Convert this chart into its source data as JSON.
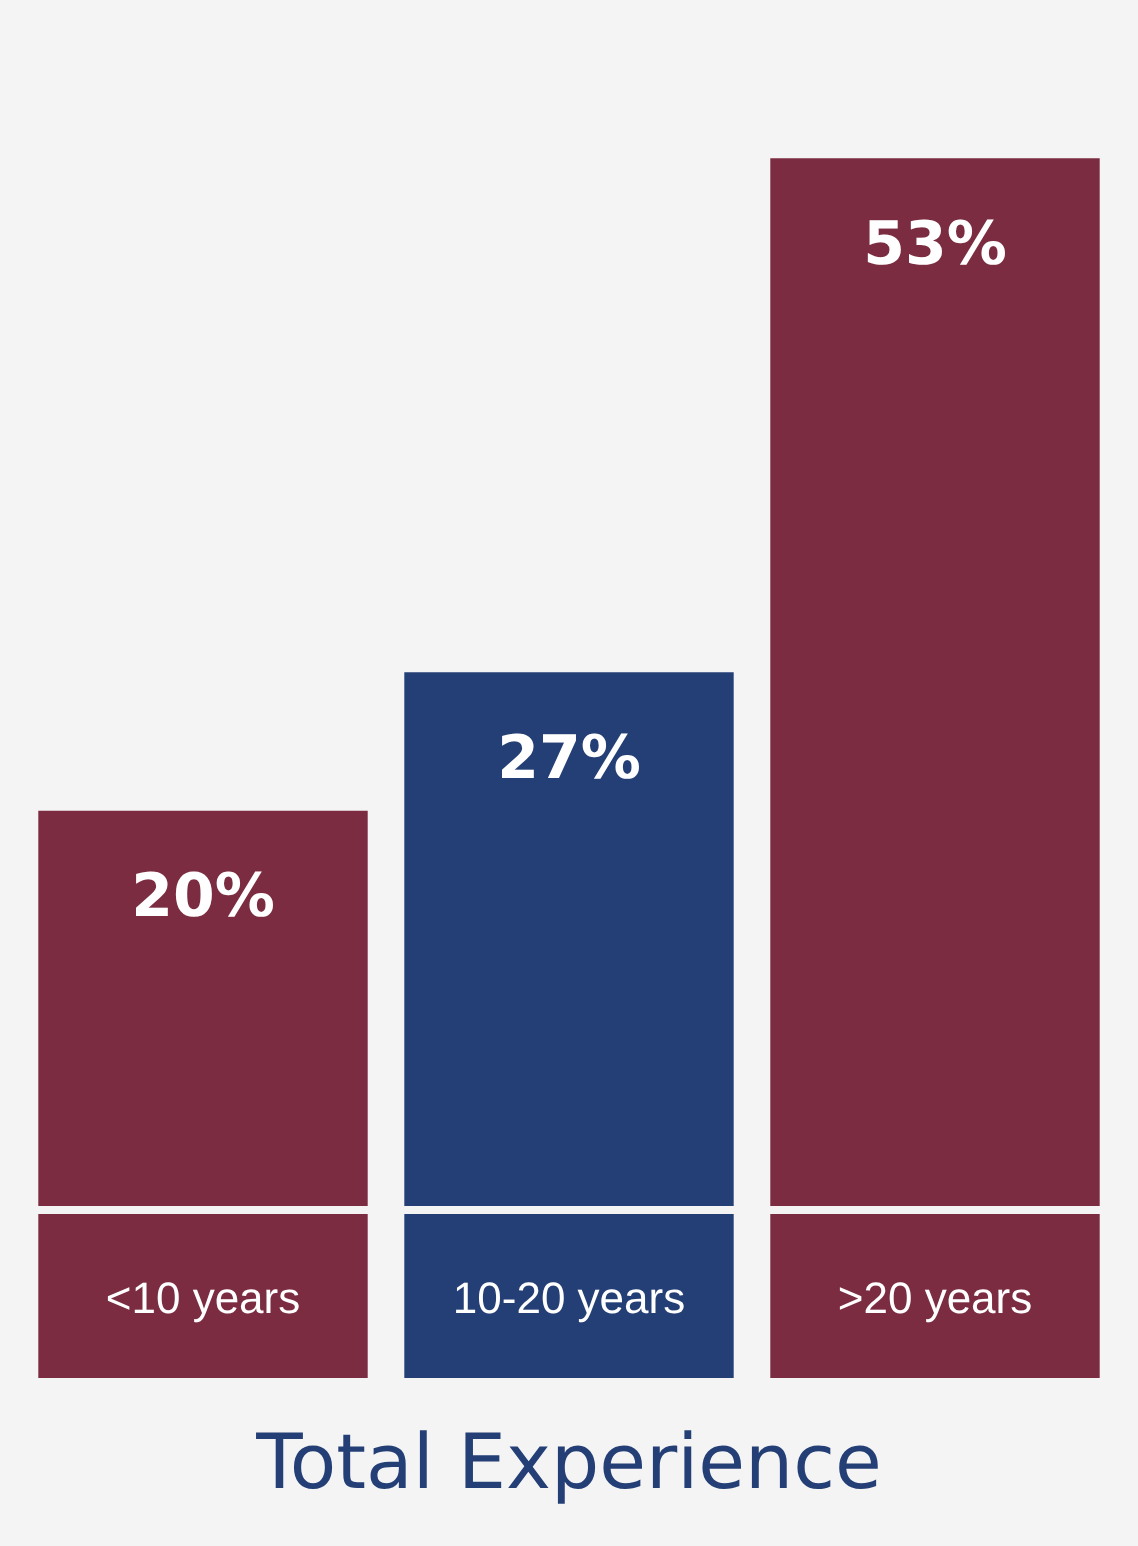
{
  "chart_data": {
    "type": "bar",
    "title": "Total Experience",
    "categories": [
      "<10 years",
      "10-20 years",
      ">20 years"
    ],
    "values": [
      20,
      27,
      53
    ],
    "colors": [
      "#7b2c40",
      "#243f75",
      "#7b2c40"
    ],
    "value_labels": [
      "20%",
      "27%",
      "53%"
    ],
    "grid": false,
    "legend": false
  }
}
